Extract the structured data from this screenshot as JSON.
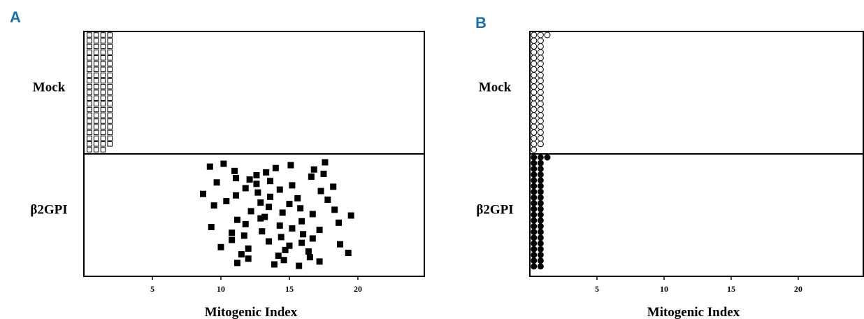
{
  "chart_data": [
    {
      "type": "dotplot",
      "label": "A",
      "xlabel": "Mitogenic Index",
      "xlim": [
        0,
        24.9
      ],
      "xticks": [
        5,
        10,
        15,
        20
      ],
      "groups": [
        {
          "name": "Mock",
          "shape": "square",
          "filled": false,
          "style": "stacked",
          "values": [
            0.4,
            0.4,
            0.4,
            0.4,
            0.4,
            0.4,
            0.4,
            0.4,
            0.4,
            0.4,
            0.4,
            0.4,
            0.4,
            0.4,
            0.4,
            0.4,
            0.4,
            0.4,
            0.4,
            0.4,
            0.4,
            0.9,
            0.9,
            0.9,
            0.9,
            0.9,
            0.9,
            0.9,
            0.9,
            0.9,
            0.9,
            0.9,
            0.9,
            0.9,
            0.9,
            0.9,
            0.9,
            0.9,
            0.9,
            0.9,
            0.9,
            0.9,
            1.4,
            1.4,
            1.4,
            1.4,
            1.4,
            1.4,
            1.4,
            1.4,
            1.4,
            1.4,
            1.4,
            1.4,
            1.4,
            1.4,
            1.4,
            1.4,
            1.4,
            1.4,
            1.4,
            1.4,
            1.4,
            1.9,
            1.9,
            1.9,
            1.9,
            1.9,
            1.9,
            1.9,
            1.9,
            1.9,
            1.9,
            1.9,
            1.9,
            1.9,
            1.9,
            1.9,
            1.9,
            1.9,
            1.9,
            1.9,
            1.9
          ]
        },
        {
          "name": "β2GPI",
          "shape": "square",
          "filled": true,
          "style": "jitter",
          "values": [
            11.1,
            13.0,
            12.1,
            10.8,
            13.6,
            16.0,
            9.7,
            11.7,
            12.6,
            14.4,
            15.2,
            16.7,
            18.2,
            10.8,
            11.8,
            13.5,
            14.3,
            15.9,
            17.3,
            18.7,
            12.7,
            15.0,
            8.7,
            10.0,
            11.1,
            12.0,
            13.6,
            14.7,
            15.6,
            16.4,
            17.8,
            19.3,
            10.4,
            11.5,
            12.9,
            14.2,
            15.0,
            16.5,
            9.5,
            12.0,
            13.5,
            14.6,
            15.8,
            17.2,
            18.3,
            11.2,
            12.2,
            13.9,
            14.5,
            15.7,
            16.7,
            17.6,
            19.5,
            10.2,
            13.2,
            15.1,
            12.9,
            9.2,
            11.2,
            14.0,
            15.9,
            16.8,
            18.6,
            11.0,
            11.8,
            13.3,
            14.3,
            17.5,
            9.3,
            12.6,
            15.2,
            16.6,
            17.2
          ]
        }
      ]
    },
    {
      "type": "dotplot",
      "label": "B",
      "xlabel": "Mitogenic Index",
      "xlim": [
        0,
        24.9
      ],
      "xticks": [
        5,
        10,
        15,
        20
      ],
      "groups": [
        {
          "name": "Mock",
          "shape": "circle",
          "filled": false,
          "style": "stacked",
          "values": [
            0.3,
            0.3,
            0.3,
            0.3,
            0.3,
            0.3,
            0.3,
            0.3,
            0.3,
            0.3,
            0.3,
            0.3,
            0.3,
            0.3,
            0.3,
            0.3,
            0.3,
            0.3,
            0.3,
            0.3,
            0.3,
            0.8,
            0.8,
            0.8,
            0.8,
            0.8,
            0.8,
            0.8,
            0.8,
            0.8,
            0.8,
            0.8,
            0.8,
            0.8,
            0.8,
            0.8,
            0.8,
            0.8,
            0.8,
            0.8,
            0.8,
            1.3
          ]
        },
        {
          "name": "β2GPI",
          "shape": "circle",
          "filled": true,
          "style": "stacked",
          "values": [
            0.3,
            0.3,
            0.3,
            0.3,
            0.3,
            0.3,
            0.3,
            0.3,
            0.3,
            0.3,
            0.3,
            0.3,
            0.3,
            0.3,
            0.3,
            0.3,
            0.3,
            0.3,
            0.3,
            0.3,
            0.8,
            0.8,
            0.8,
            0.8,
            0.8,
            0.8,
            0.8,
            0.8,
            0.8,
            0.8,
            0.8,
            0.8,
            0.8,
            0.8,
            0.8,
            0.8,
            0.8,
            0.8,
            0.8,
            0.8,
            1.3
          ]
        }
      ]
    }
  ]
}
